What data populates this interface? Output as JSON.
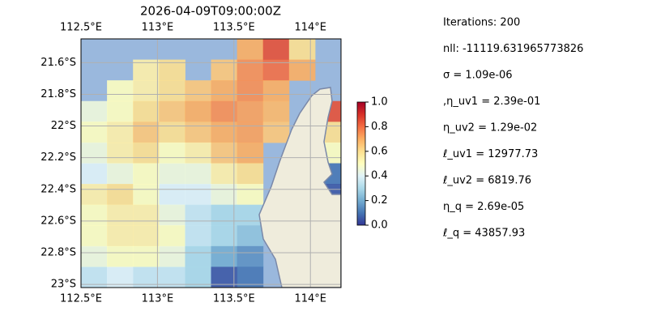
{
  "chart_data": {
    "type": "heatmap",
    "title": "2026-04-09T09:00:00Z",
    "colormap": "RdYlBu_r",
    "xlim": [
      112.5,
      114.2
    ],
    "ylim": [
      21.45,
      23.02
    ],
    "xticks": [
      {
        "value": 112.5,
        "label": "112.5°E"
      },
      {
        "value": 113,
        "label": "113°E"
      },
      {
        "value": 113.5,
        "label": "113.5°E"
      },
      {
        "value": 114,
        "label": "114°E"
      }
    ],
    "yticks": [
      {
        "value": 21.6,
        "label": "21.6°S"
      },
      {
        "value": 21.8,
        "label": "21.8°S"
      },
      {
        "value": 22,
        "label": "22°S"
      },
      {
        "value": 22.2,
        "label": "22.2°S"
      },
      {
        "value": 22.4,
        "label": "22.4°S"
      },
      {
        "value": 22.6,
        "label": "22.6°S"
      },
      {
        "value": 22.8,
        "label": "22.8°S"
      },
      {
        "value": 23,
        "label": "23°S"
      }
    ],
    "clim": [
      0,
      1
    ],
    "cticks": [
      {
        "value": 0,
        "label": "0.0"
      },
      0.2,
      0.4,
      0.6,
      0.8,
      {
        "value": 1,
        "label": "1.0"
      }
    ],
    "grid": true,
    "values": [
      [
        null,
        null,
        null,
        null,
        null,
        null,
        0.7,
        0.85,
        0.6,
        null
      ],
      [
        null,
        null,
        0.55,
        0.6,
        null,
        0.65,
        0.75,
        0.8,
        0.7,
        null
      ],
      [
        null,
        0.5,
        0.55,
        0.6,
        0.65,
        0.7,
        0.75,
        0.7,
        null,
        null
      ],
      [
        0.45,
        0.5,
        0.6,
        0.65,
        0.7,
        0.75,
        0.72,
        0.68,
        null,
        0.85
      ],
      [
        0.5,
        0.55,
        0.65,
        0.6,
        0.65,
        0.7,
        0.72,
        0.65,
        null,
        0.6
      ],
      [
        0.45,
        0.55,
        0.6,
        0.5,
        0.55,
        0.65,
        0.7,
        null,
        null,
        0.5
      ],
      [
        0.4,
        0.45,
        0.5,
        0.45,
        0.45,
        0.55,
        0.6,
        null,
        null,
        0.1
      ],
      [
        0.55,
        0.6,
        0.5,
        0.4,
        0.4,
        0.45,
        0.5,
        null,
        null,
        0.05
      ],
      [
        0.5,
        0.55,
        0.55,
        0.45,
        0.35,
        0.3,
        0.3,
        null,
        null,
        null
      ],
      [
        0.5,
        0.55,
        0.55,
        0.5,
        0.35,
        0.3,
        0.25,
        null,
        null,
        null
      ],
      [
        0.45,
        0.5,
        0.5,
        0.45,
        0.3,
        0.2,
        0.15,
        null,
        null,
        null
      ],
      [
        0.35,
        0.4,
        0.35,
        0.35,
        0.3,
        0.05,
        0.1,
        null,
        null,
        null
      ]
    ]
  },
  "info": [
    "Iterations: 200",
    "nll: -11119.631965773826",
    "σ = 1.09e-06",
    ",η_uv1 = 2.39e-01",
    "η_uv2 = 1.29e-02",
    "ℓ_uv1 = 12977.73",
    "ℓ_uv2 = 6819.76",
    "η_q = 2.69e-05",
    "ℓ_q = 43857.93"
  ]
}
